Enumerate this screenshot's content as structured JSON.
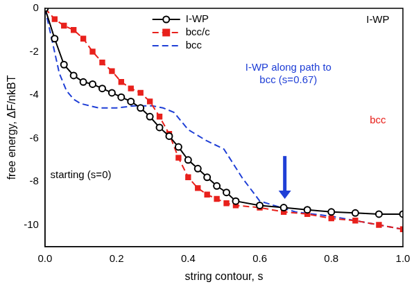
{
  "chart_data": {
    "type": "line",
    "x_label": "string contour, s",
    "y_label": "free energy, ΔF/nkBT",
    "xlim": [
      0,
      1
    ],
    "xticks": [
      {
        "value": 0,
        "label": "0.0"
      },
      {
        "value": 0.2,
        "label": "0.2"
      },
      {
        "value": 0.4,
        "label": "0.4"
      },
      {
        "value": 0.6,
        "label": "0.6"
      },
      {
        "value": 0.8,
        "label": "0.8"
      },
      {
        "value": 1,
        "label": "1.0"
      }
    ],
    "ylim": [
      -11,
      0
    ],
    "yticks": [
      -10,
      -8,
      -6,
      -4,
      -2,
      0
    ],
    "grid": false,
    "legend": "top",
    "series": [
      {
        "name": "I-WP",
        "color": "#000000",
        "marker": "circle_open",
        "line_style": "solid",
        "x": [
          0,
          0.027,
          0.053,
          0.08,
          0.107,
          0.133,
          0.16,
          0.187,
          0.213,
          0.24,
          0.267,
          0.293,
          0.32,
          0.347,
          0.373,
          0.4,
          0.427,
          0.453,
          0.48,
          0.507,
          0.533,
          0.6,
          0.667,
          0.733,
          0.8,
          0.867,
          0.933,
          1.0
        ],
        "values": [
          0,
          -1.4,
          -2.6,
          -3.1,
          -3.4,
          -3.5,
          -3.7,
          -3.9,
          -4.1,
          -4.3,
          -4.6,
          -5.0,
          -5.5,
          -5.9,
          -6.4,
          -7.0,
          -7.4,
          -7.8,
          -8.2,
          -8.5,
          -8.9,
          -9.1,
          -9.2,
          -9.3,
          -9.4,
          -9.45,
          -9.5,
          -9.5
        ]
      },
      {
        "name": "bcc/c",
        "color": "#e8211c",
        "marker": "square",
        "line_style": "dashed",
        "x": [
          0,
          0.027,
          0.053,
          0.08,
          0.107,
          0.133,
          0.16,
          0.187,
          0.213,
          0.24,
          0.267,
          0.293,
          0.32,
          0.347,
          0.373,
          0.4,
          0.427,
          0.453,
          0.48,
          0.507,
          0.533,
          0.6,
          0.667,
          0.733,
          0.8,
          0.867,
          0.933,
          1.0
        ],
        "values": [
          0,
          -0.5,
          -0.8,
          -1.0,
          -1.4,
          -2.0,
          -2.5,
          -2.9,
          -3.4,
          -3.7,
          -3.9,
          -4.3,
          -5.0,
          -5.8,
          -6.9,
          -7.8,
          -8.3,
          -8.6,
          -8.8,
          -9.0,
          -9.1,
          -9.2,
          -9.4,
          -9.5,
          -9.7,
          -9.8,
          -10.0,
          -10.2
        ]
      },
      {
        "name": "bcc",
        "color": "#1f3fd6",
        "marker": "none",
        "line_style": "dashed",
        "x": [
          0,
          0.02,
          0.04,
          0.06,
          0.08,
          0.1,
          0.15,
          0.2,
          0.25,
          0.3,
          0.33,
          0.36,
          0.4,
          0.45,
          0.5,
          0.55,
          0.6,
          0.7,
          0.8,
          0.9,
          1.0
        ],
        "values": [
          0,
          -1.5,
          -3.0,
          -3.8,
          -4.2,
          -4.4,
          -4.6,
          -4.6,
          -4.5,
          -4.5,
          -4.6,
          -4.8,
          -5.6,
          -6.1,
          -6.5,
          -7.8,
          -8.9,
          -9.4,
          -9.6,
          -9.9,
          -10.2
        ]
      }
    ],
    "annotations": [
      {
        "text": "I-WP",
        "color": "#000000"
      },
      {
        "text": "I-WP along path to bcc (s=0.67)",
        "color": "#1f3fd6",
        "x": 0.67
      },
      {
        "text": "bcc",
        "color": "#e8211c"
      },
      {
        "text": "starting (s=0)",
        "color": "#000000"
      }
    ]
  }
}
